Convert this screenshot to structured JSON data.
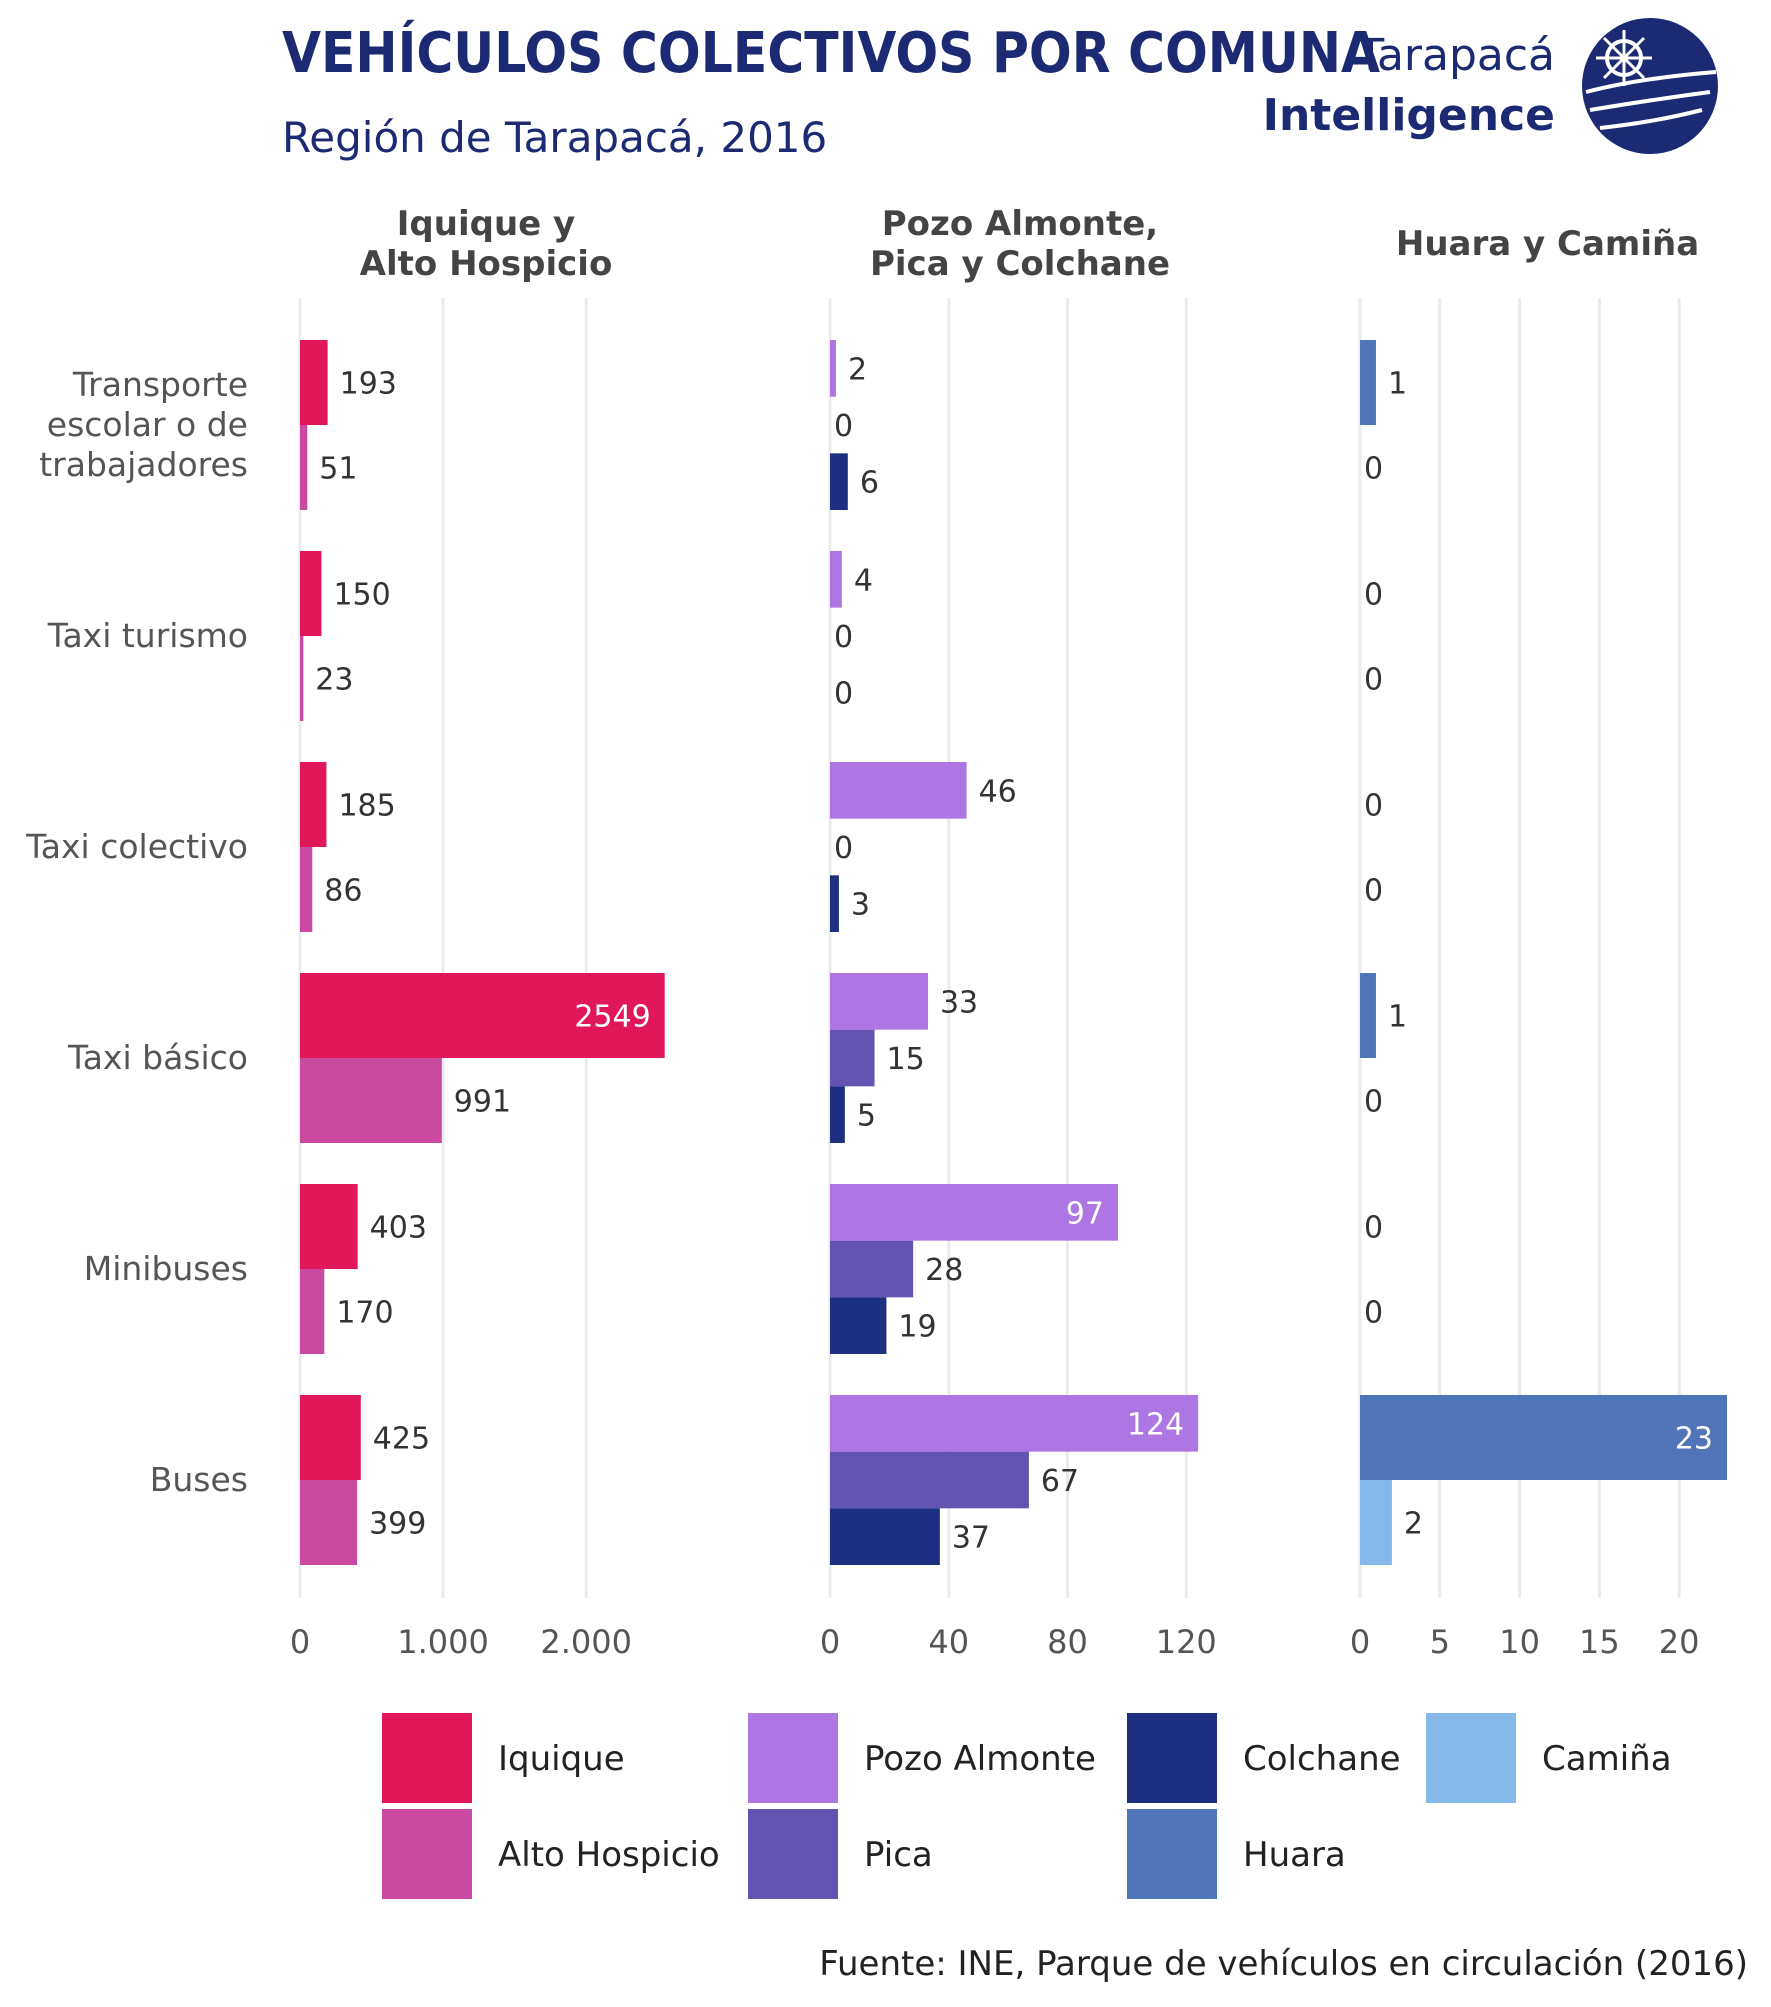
{
  "header": {
    "title": "VEHÍCULOS COLECTIVOS POR COMUNA",
    "subtitle": "Región de Tarapacá, 2016",
    "brand_line1": "Tarapacá",
    "brand_line2": "Intelligence"
  },
  "source": "Fuente: INE, Parque de vehículos en circulación (2016)",
  "colors": {
    "title": "#1c2a73",
    "Iquique": "#e0185a",
    "Alto Hospicio": "#c94aa0",
    "Pozo Almonte": "#ad76e2",
    "Pica": "#6454b1",
    "Colchane": "#1c2f80",
    "Huara": "#5076b9",
    "Camiña": "#84b9ea",
    "logo": "#1c2a73"
  },
  "chart_data": {
    "type": "bar",
    "orientation": "horizontal",
    "categories": [
      "Transporte escolar o de trabajadores",
      "Taxi turismo",
      "Taxi colectivo",
      "Taxi básico",
      "Minibuses",
      "Buses"
    ],
    "category_labels": [
      [
        "Transporte",
        "escolar o de",
        "trabajadores"
      ],
      [
        "Taxi turismo"
      ],
      [
        "Taxi colectivo"
      ],
      [
        "Taxi básico"
      ],
      [
        "Minibuses"
      ],
      [
        "Buses"
      ]
    ],
    "panels": [
      {
        "title_lines": [
          "Iquique y",
          "Alto Hospicio"
        ],
        "xlim": [
          0,
          2600
        ],
        "ticks": [
          0,
          1000,
          2000
        ],
        "tick_labels": [
          "0",
          "1.000",
          "2.000"
        ],
        "series": [
          {
            "name": "Iquique",
            "values": [
              193,
              150,
              185,
              2549,
              403,
              425
            ]
          },
          {
            "name": "Alto Hospicio",
            "values": [
              51,
              23,
              86,
              991,
              170,
              399
            ]
          }
        ]
      },
      {
        "title_lines": [
          "Pozo Almonte,",
          "Pica y Colchane"
        ],
        "xlim": [
          0,
          128
        ],
        "ticks": [
          0,
          40,
          80,
          120
        ],
        "tick_labels": [
          "0",
          "40",
          "80",
          "120"
        ],
        "series": [
          {
            "name": "Pozo Almonte",
            "values": [
              2,
              4,
              46,
              33,
              97,
              124
            ]
          },
          {
            "name": "Pica",
            "values": [
              0,
              0,
              0,
              15,
              28,
              67
            ]
          },
          {
            "name": "Colchane",
            "values": [
              6,
              0,
              3,
              5,
              19,
              37
            ]
          }
        ]
      },
      {
        "title_lines": [
          "Huara y Camiña"
        ],
        "xlim": [
          0,
          23.5
        ],
        "ticks": [
          0,
          5,
          10,
          15,
          20
        ],
        "tick_labels": [
          "0",
          "5",
          "10",
          "15",
          "20"
        ],
        "series": [
          {
            "name": "Huara",
            "values": [
              1,
              0,
              0,
              1,
              0,
              23
            ]
          },
          {
            "name": "Camiña",
            "values": [
              0,
              0,
              0,
              0,
              0,
              2
            ]
          }
        ]
      }
    ],
    "legend": {
      "position": "bottom",
      "items": [
        {
          "name": "Iquique",
          "label": "Iquique"
        },
        {
          "name": "Alto Hospicio",
          "label": "Alto Hospicio"
        },
        {
          "name": "Pozo Almonte",
          "label": "Pozo Almonte"
        },
        {
          "name": "Pica",
          "label": "Pica"
        },
        {
          "name": "Colchane",
          "label": "Colchane"
        },
        {
          "name": "Huara",
          "label": "Huara"
        },
        {
          "name": "Camiña",
          "label": "Camiña"
        }
      ]
    },
    "grid": true
  }
}
